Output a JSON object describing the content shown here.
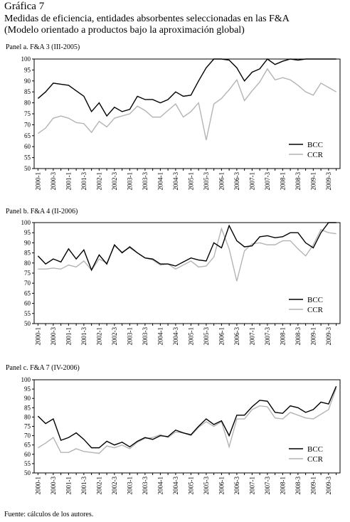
{
  "header": {
    "title": "Gráfica 7",
    "subtitle": [
      "Medidas de eficiencia, entidades absorbentes seleccionadas en las F&A",
      "(Modelo orientado a productos bajo la aproximación global)"
    ]
  },
  "chart_data": [
    {
      "type": "line",
      "title": "Panel a. F&A 3 (III-2005)",
      "categories": [
        "2000-1",
        null,
        "2000-3",
        null,
        "2001-1",
        null,
        "2001-3",
        null,
        "2002-1",
        null,
        "2002-3",
        null,
        "2003-1",
        null,
        "2003-3",
        null,
        "2004-1",
        null,
        "2004-3",
        null,
        "2005-1",
        null,
        "2005-3",
        null,
        "2006-1",
        null,
        "2006-3",
        null,
        "2007-1",
        null,
        "2007-3",
        null,
        "2008-1",
        null,
        "2008-3",
        null,
        "2009-1",
        null,
        "2009-3",
        null
      ],
      "series": [
        {
          "name": "BCC",
          "color": "#000000",
          "values": [
            82,
            85,
            89,
            88.5,
            88,
            85.5,
            83,
            76,
            80,
            74,
            78,
            76,
            77,
            83,
            81.5,
            81.5,
            80,
            81.5,
            85,
            83,
            83.5,
            90,
            96,
            100,
            100,
            99.5,
            96,
            90,
            94,
            95.5,
            100,
            97.5,
            99,
            100,
            99.5,
            100,
            100,
            100,
            100,
            100
          ]
        },
        {
          "name": "CCR",
          "color": "#b4b4b4",
          "values": [
            66,
            68.5,
            73,
            74,
            73,
            71,
            70.5,
            66.5,
            71.5,
            69,
            73,
            74,
            75,
            78.5,
            76.5,
            73.5,
            73.5,
            76.5,
            79.5,
            73.5,
            76,
            80,
            63,
            79.5,
            82,
            86,
            90.5,
            81,
            85.5,
            89.5,
            95.5,
            90.5,
            91.5,
            90.5,
            88,
            85,
            83.5,
            89,
            87,
            85
          ]
        }
      ],
      "ylim": [
        50,
        100
      ],
      "yticks": [
        50,
        55,
        60,
        65,
        70,
        75,
        80,
        85,
        90,
        95,
        100
      ],
      "legend": "lower right"
    },
    {
      "type": "line",
      "title": "Panel b. F&A 4 (II-2006)",
      "categories": [
        "2000-1",
        null,
        "2000-3",
        null,
        "2001-1",
        null,
        "2001-3",
        null,
        "2002-1",
        null,
        "2002-3",
        null,
        "2003-1",
        null,
        "2003-3",
        null,
        "2004-1",
        null,
        "2004-3",
        null,
        "2005-1",
        null,
        "2005-3",
        null,
        "2006-1",
        null,
        "2006-3",
        null,
        "2007-1",
        null,
        "2007-3",
        null,
        "2008-1",
        null,
        "2008-3",
        null,
        "2009-1",
        null,
        "2009-3",
        null
      ],
      "series": [
        {
          "name": "BCC",
          "color": "#000000",
          "values": [
            83.5,
            79.5,
            82,
            80.5,
            87,
            82,
            86.5,
            76.5,
            84,
            79.5,
            89,
            85,
            88,
            85,
            82.5,
            82,
            79.5,
            79.5,
            78.5,
            80.5,
            82.5,
            81.5,
            81,
            90,
            87.5,
            98.5,
            91,
            88,
            88.5,
            93,
            93.5,
            92.5,
            93,
            95,
            95,
            90,
            87.5,
            95,
            100,
            100
          ]
        },
        {
          "name": "CCR",
          "color": "#b4b4b4",
          "values": [
            77,
            77,
            77.5,
            77,
            79,
            78,
            81,
            76.5,
            82,
            80,
            88.5,
            85.5,
            87.5,
            85,
            82.5,
            81.5,
            79,
            79.5,
            77,
            79,
            81,
            78,
            78.5,
            83,
            97,
            87,
            71,
            86,
            89.5,
            90,
            89,
            89,
            91,
            91,
            87,
            83.5,
            89,
            96.5,
            95,
            94.5
          ]
        }
      ],
      "ylim": [
        50,
        100
      ],
      "yticks": [
        50,
        55,
        60,
        65,
        70,
        75,
        80,
        85,
        90,
        95,
        100
      ],
      "legend": "lower right"
    },
    {
      "type": "line",
      "title": "Panel c. F&A 7 (IV-2006)",
      "categories": [
        "2000-1",
        null,
        "2000-3",
        null,
        "2001-1",
        null,
        "2001-3",
        null,
        "2002-1",
        null,
        "2002-3",
        null,
        "2003-1",
        null,
        "2003-3",
        null,
        "2004-1",
        null,
        "2004-3",
        null,
        "2005-1",
        null,
        "2005-3",
        null,
        "2006-1",
        null,
        "2006-3",
        null,
        "2007-1",
        null,
        "2007-3",
        null,
        "2008-1",
        null,
        "2008-3",
        null,
        "2009-1",
        null,
        "2009-3",
        null
      ],
      "series": [
        {
          "name": "BCC",
          "color": "#000000",
          "values": [
            80.5,
            76.5,
            79,
            67.5,
            69,
            71.5,
            68,
            63.5,
            63.5,
            67,
            65,
            66.5,
            64,
            67,
            69,
            68,
            70,
            69.5,
            73,
            71.5,
            70.5,
            75,
            79,
            76,
            78,
            70,
            81,
            81,
            85.5,
            89,
            88.5,
            82.5,
            82,
            86,
            85,
            82.5,
            84,
            88,
            87,
            96.5
          ]
        },
        {
          "name": "CCR",
          "color": "#b4b4b4",
          "values": [
            63.5,
            66,
            69,
            61,
            61,
            63,
            61.5,
            61,
            60.5,
            64.5,
            63.5,
            65,
            63,
            66.5,
            68.5,
            69,
            70.5,
            69,
            72,
            71.5,
            70,
            74.5,
            77.5,
            75,
            77.5,
            64,
            79,
            79,
            84,
            86,
            85.5,
            79.5,
            79,
            82.5,
            81,
            79.5,
            79,
            81.5,
            84,
            95.5
          ]
        }
      ],
      "ylim": [
        50,
        100
      ],
      "yticks": [
        50,
        55,
        60,
        65,
        70,
        75,
        80,
        85,
        90,
        95,
        100
      ],
      "legend": "lower right"
    }
  ],
  "source": "Fuente: cálculos de los autores."
}
